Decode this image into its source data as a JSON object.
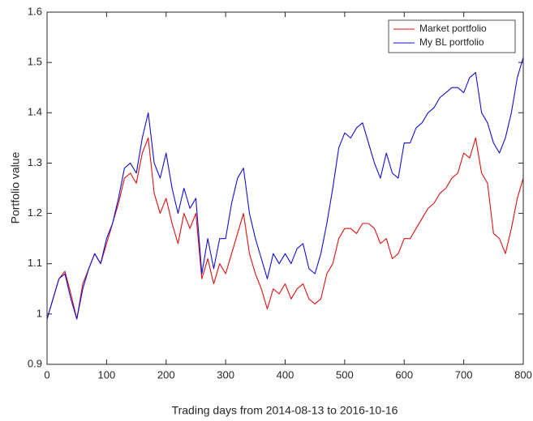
{
  "chart_data": {
    "type": "line",
    "xlabel": "Trading days from 2014-08-13 to 2016-10-16",
    "ylabel": "Portfolio value",
    "x": [
      0,
      10,
      20,
      30,
      40,
      50,
      60,
      70,
      80,
      90,
      100,
      110,
      120,
      130,
      140,
      150,
      160,
      170,
      180,
      190,
      200,
      210,
      220,
      230,
      240,
      250,
      260,
      270,
      280,
      290,
      300,
      310,
      320,
      330,
      340,
      350,
      360,
      370,
      380,
      390,
      400,
      410,
      420,
      430,
      440,
      450,
      460,
      470,
      480,
      490,
      500,
      510,
      520,
      530,
      540,
      550,
      560,
      570,
      580,
      590,
      600,
      610,
      620,
      630,
      640,
      650,
      660,
      670,
      680,
      690,
      700,
      710,
      720,
      730,
      740,
      750,
      760,
      770,
      780,
      790,
      800
    ],
    "series": [
      {
        "name": "Market portfolio",
        "color": "#e01010",
        "values": [
          0.99,
          1.03,
          1.07,
          1.085,
          1.04,
          0.99,
          1.06,
          1.09,
          1.12,
          1.1,
          1.14,
          1.18,
          1.22,
          1.27,
          1.28,
          1.26,
          1.32,
          1.35,
          1.24,
          1.2,
          1.23,
          1.18,
          1.14,
          1.2,
          1.17,
          1.2,
          1.07,
          1.11,
          1.06,
          1.1,
          1.08,
          1.12,
          1.16,
          1.2,
          1.12,
          1.08,
          1.05,
          1.01,
          1.05,
          1.04,
          1.06,
          1.03,
          1.05,
          1.06,
          1.03,
          1.02,
          1.03,
          1.08,
          1.1,
          1.15,
          1.17,
          1.17,
          1.16,
          1.18,
          1.18,
          1.17,
          1.14,
          1.15,
          1.11,
          1.12,
          1.15,
          1.15,
          1.17,
          1.19,
          1.21,
          1.22,
          1.24,
          1.25,
          1.27,
          1.28,
          1.32,
          1.31,
          1.35,
          1.28,
          1.26,
          1.16,
          1.15,
          1.12,
          1.17,
          1.23,
          1.27
        ]
      },
      {
        "name": "My BL portfolio",
        "color": "#1010d8",
        "values": [
          0.99,
          1.03,
          1.07,
          1.08,
          1.03,
          0.99,
          1.05,
          1.09,
          1.12,
          1.1,
          1.15,
          1.18,
          1.23,
          1.29,
          1.3,
          1.28,
          1.35,
          1.4,
          1.3,
          1.27,
          1.32,
          1.25,
          1.2,
          1.25,
          1.21,
          1.23,
          1.08,
          1.15,
          1.09,
          1.15,
          1.15,
          1.22,
          1.27,
          1.29,
          1.2,
          1.15,
          1.11,
          1.07,
          1.12,
          1.1,
          1.12,
          1.1,
          1.13,
          1.14,
          1.09,
          1.08,
          1.12,
          1.18,
          1.25,
          1.33,
          1.36,
          1.35,
          1.37,
          1.38,
          1.34,
          1.3,
          1.27,
          1.32,
          1.28,
          1.27,
          1.34,
          1.34,
          1.37,
          1.38,
          1.4,
          1.41,
          1.43,
          1.44,
          1.45,
          1.45,
          1.44,
          1.47,
          1.48,
          1.4,
          1.38,
          1.34,
          1.32,
          1.35,
          1.4,
          1.47,
          1.51
        ]
      }
    ],
    "xlim": [
      0,
      800
    ],
    "xticks": [
      0,
      100,
      200,
      300,
      400,
      500,
      600,
      700,
      800
    ],
    "ylim": [
      0.9,
      1.6
    ],
    "yticks": [
      0.9,
      1,
      1.1,
      1.2,
      1.3,
      1.4,
      1.5,
      1.6
    ],
    "legend": "northeast"
  }
}
